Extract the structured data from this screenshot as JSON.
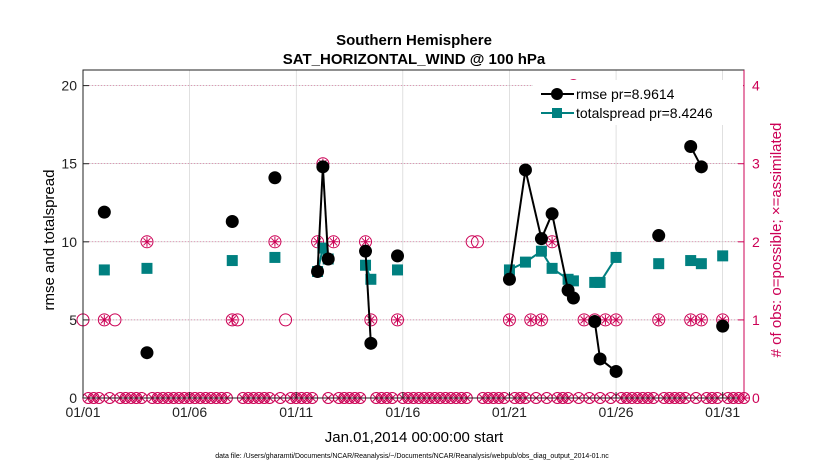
{
  "chart_data": {
    "type": "line",
    "title": "Southern Hemisphere",
    "subtitle": "SAT_HORIZONTAL_WIND @ 100 hPa",
    "xlabel": "Jan.01,2014 00:00:00 start",
    "ylabel": "rmse and totalspread",
    "ylabel_right": "# of obs: o=possible; ×=assimilated",
    "footer": "data file: /Users/gharamti/Documents/NCAR/Reanalysis/~/Documents/NCAR/Reanalysis/webpub/obs_diag_output_2014-01.nc",
    "x_tick_labels": [
      "01/01",
      "01/06",
      "01/11",
      "01/16",
      "01/21",
      "01/26",
      "01/31"
    ],
    "x_tick_days": [
      1,
      6,
      11,
      16,
      21,
      26,
      31
    ],
    "xlim": [
      1,
      32
    ],
    "ylim": [
      0,
      21
    ],
    "yticks": [
      0,
      5,
      10,
      15,
      20
    ],
    "ylim_right": [
      0,
      4.2
    ],
    "yticks_right": [
      0,
      1,
      2,
      3,
      4
    ],
    "grid": true,
    "legend_position": "top-right",
    "colors": {
      "rmse": "#000000",
      "totalspread": "#008080",
      "obs": "#cc0055",
      "grid": "#cccccc"
    },
    "series": [
      {
        "name": "rmse pr=8.9614",
        "marker": "circle",
        "x": [
          2,
          4,
          8,
          10,
          12,
          12.25,
          12.5,
          14.25,
          14.5,
          15.75,
          21,
          21.75,
          22.5,
          23,
          23.75,
          24,
          25,
          25.25,
          26,
          28,
          29.5,
          30,
          31
        ],
        "y": [
          11.9,
          2.9,
          11.3,
          14.1,
          8.1,
          14.8,
          8.9,
          9.4,
          3.5,
          9.1,
          7.6,
          14.6,
          10.2,
          11.8,
          6.9,
          6.4,
          4.9,
          2.5,
          1.7,
          10.4,
          16.1,
          14.8,
          4.6
        ]
      },
      {
        "name": "totalspread pr=8.4246",
        "marker": "square",
        "x": [
          2,
          4,
          8,
          10,
          12,
          12.25,
          12.5,
          14.25,
          14.5,
          15.75,
          21,
          21.75,
          22.5,
          23,
          23.75,
          24,
          25,
          25.25,
          26,
          28,
          29.5,
          30,
          31
        ],
        "y": [
          8.2,
          8.3,
          8.8,
          9.0,
          8.1,
          9.6,
          8.9,
          8.5,
          7.6,
          8.2,
          8.2,
          8.7,
          9.4,
          8.3,
          7.6,
          7.5,
          7.4,
          7.4,
          9.0,
          8.6,
          8.8,
          8.6,
          9.1
        ]
      }
    ],
    "obs_possible": {
      "x": [
        1,
        2,
        2.5,
        4,
        8,
        8.25,
        10,
        10.5,
        12,
        12.25,
        12.75,
        14.25,
        14.5,
        15.75,
        19.25,
        19.5,
        21,
        22,
        22.5,
        23,
        24,
        24.5,
        25,
        25.5,
        26,
        28,
        29.5,
        30,
        31
      ],
      "y": [
        1,
        1,
        1,
        2,
        1,
        1,
        2,
        1,
        2,
        3,
        2,
        2,
        1,
        1,
        2,
        2,
        1,
        1,
        1,
        2,
        4,
        1,
        1,
        1,
        1,
        1,
        1,
        1,
        1
      ]
    },
    "obs_assimilated": {
      "x": [
        2,
        4,
        8,
        10,
        12,
        12.25,
        12.75,
        14.25,
        14.5,
        15.75,
        21,
        22,
        22.5,
        23,
        24,
        24.5,
        25,
        25.5,
        26,
        28,
        29.5,
        30,
        31
      ],
      "y": [
        1,
        2,
        1,
        2,
        2,
        3,
        2,
        2,
        1,
        1,
        1,
        1,
        1,
        2,
        4,
        1,
        1,
        1,
        1,
        1,
        1,
        1,
        1
      ]
    },
    "zero_count_days_step": 0.25
  }
}
